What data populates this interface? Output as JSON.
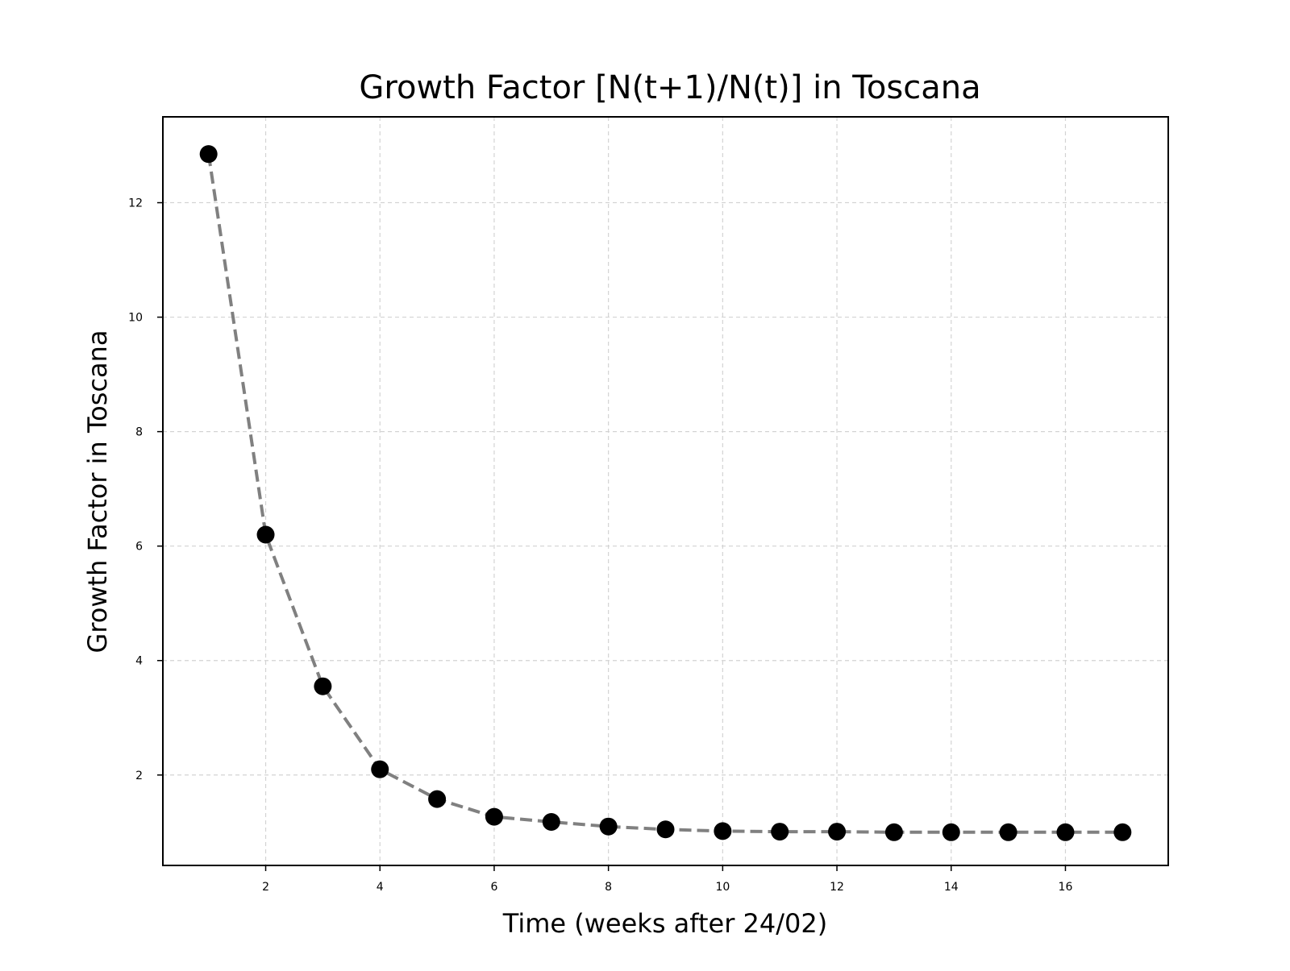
{
  "chart_data": {
    "type": "scatter",
    "title": "Growth Factor [N(t+1)/N(t)] in Toscana",
    "xlabel": "Time (weeks after 24/02)",
    "ylabel": "Growth Factor in Toscana",
    "xlim": [
      0.2,
      17.8
    ],
    "ylim": [
      0.42,
      13.5
    ],
    "x_ticks": [
      2,
      4,
      6,
      8,
      10,
      12,
      14,
      16
    ],
    "y_ticks": [
      2,
      4,
      6,
      8,
      10,
      12
    ],
    "grid": true,
    "legend": "none",
    "series": [
      {
        "x": [
          1,
          2,
          3,
          4,
          5,
          6,
          7,
          8,
          9,
          10,
          11,
          12,
          13,
          14,
          15,
          16,
          17
        ],
        "y": [
          12.85,
          6.2,
          3.55,
          2.1,
          1.58,
          1.27,
          1.18,
          1.1,
          1.05,
          1.02,
          1.01,
          1.01,
          1.0,
          1.0,
          1.0,
          1.0,
          1.0
        ],
        "marker_color": "#000000",
        "line_color": "#808080",
        "line_style": "dashed"
      }
    ]
  },
  "colors": {
    "grid": "#d3d3d3",
    "frame": "#000000",
    "background": "#ffffff"
  }
}
